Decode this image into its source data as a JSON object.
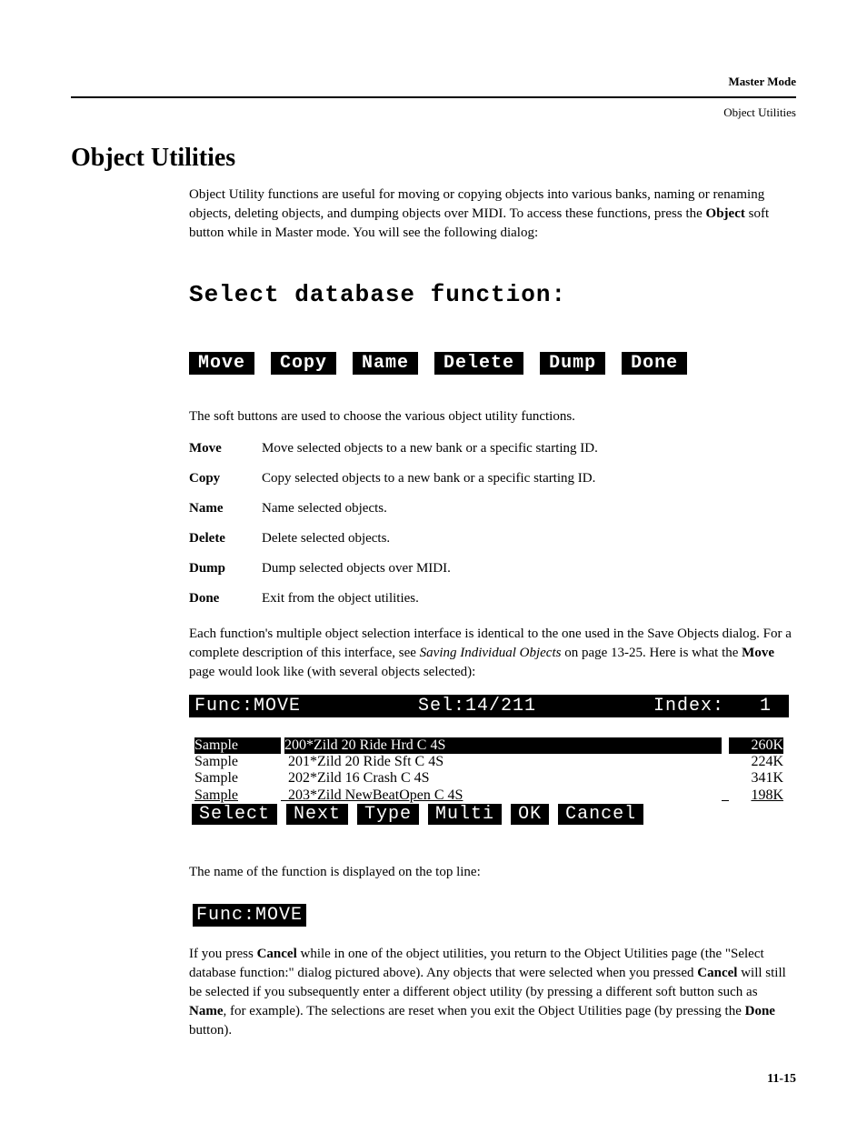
{
  "header": {
    "mode": "Master Mode",
    "subtitle": "Object Utilities"
  },
  "title": "Object Utilities",
  "intro": {
    "pre": "Object Utility functions are useful for moving or copying objects into various banks, naming or renaming objects, deleting objects, and dumping objects over MIDI. To access these functions, press the ",
    "bold1": "Object",
    "post": " soft button while in Master mode. You will see the following dialog:"
  },
  "lcd": {
    "prompt": "Select database function:",
    "buttons": [
      "Move",
      "Copy",
      "Name",
      "Delete",
      "Dump",
      "Done"
    ]
  },
  "softbtns_lead": "The soft buttons are used to choose the various object utility functions.",
  "defs": [
    {
      "term": "Move",
      "def": "Move selected objects to a new bank or a specific starting ID."
    },
    {
      "term": "Copy",
      "def": "Copy selected objects to a new bank or a specific starting ID."
    },
    {
      "term": "Name",
      "def": "Name selected objects."
    },
    {
      "term": "Delete",
      "def": "Delete selected objects."
    },
    {
      "term": "Dump",
      "def": "Dump selected objects over MIDI."
    },
    {
      "term": "Done",
      "def": "Exit from the object utilities."
    }
  ],
  "after_defs": {
    "pre": "Each function's multiple object selection interface is identical to the one used in the Save Objects dialog. For a complete description of this interface, see ",
    "ital": "Saving Individual Objects",
    "mid": " on page 13-25. Here is what the ",
    "bold": "Move",
    "post": " page would look like (with several objects selected):"
  },
  "move": {
    "top": {
      "func": "Func:MOVE",
      "sel": "Sel:14/211",
      "index": "Index:",
      "idx_val": "1"
    },
    "rows": [
      {
        "type": "Sample",
        "pre": "200*",
        "name": "Zild 20 Ride Hrd C 4S",
        "size": "260K",
        "sel": true
      },
      {
        "type": "Sample",
        "pre": "201*",
        "name": "Zild 20 Ride Sft C 4S",
        "size": "224K",
        "sel": false
      },
      {
        "type": "Sample",
        "pre": "202*",
        "name": "Zild 16 Crash    C 4S",
        "size": "341K",
        "sel": false
      },
      {
        "type": "Sample",
        "pre": "203*",
        "name": "Zild NewBeatOpen C 4S",
        "size": "198K",
        "sel": false,
        "underline": true
      }
    ],
    "bottom": [
      "Select",
      "Next",
      "Type",
      "Multi",
      "OK",
      "Cancel"
    ]
  },
  "after_move": "The name of the function is displayed on the top line:",
  "func_label": "Func:MOVE",
  "final": {
    "p1a": "If you press ",
    "p1b": "Cancel",
    "p1c": " while in one of the object utilities, you return to the Object Utilities page (the \"Select database function:\" dialog pictured above). Any objects that were selected when you pressed ",
    "p1d": "Cancel",
    "p1e": " will still be selected if you subsequently enter a different object utility (by pressing a different soft button such as ",
    "p1f": "Name",
    "p1g": ", for example). The selections are reset when you exit the Object Utilities page (by pressing the ",
    "p1h": "Done",
    "p1i": " button)."
  },
  "pagenum": "11-15"
}
